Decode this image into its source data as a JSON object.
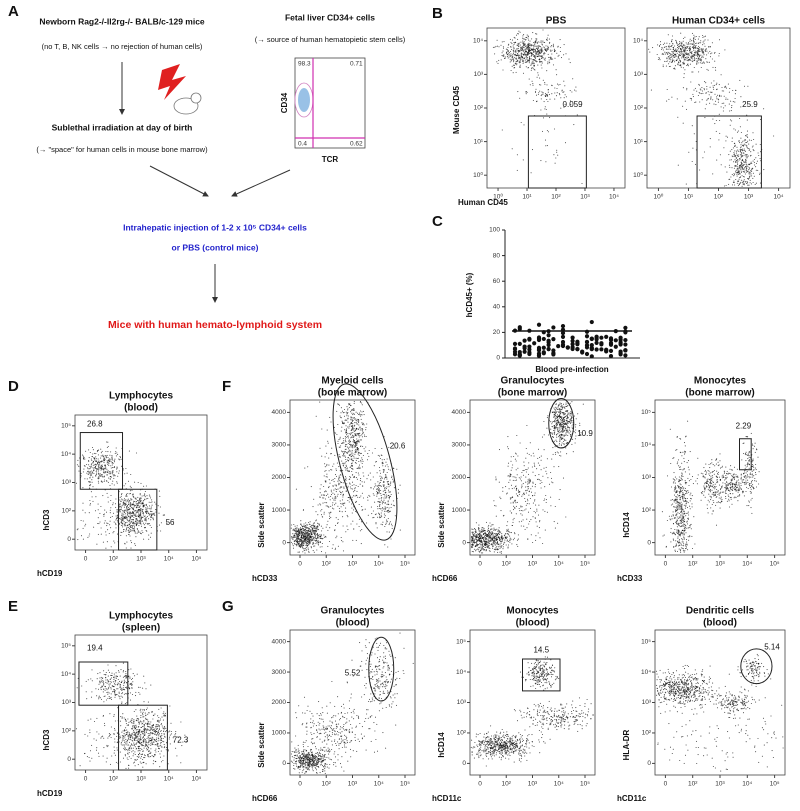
{
  "panel_a": {
    "label": "A",
    "mouse_title": "Newborn Rag2-/-Il2rg-/- BALB/c-129 mice",
    "mouse_note": "(no T, B, NK cells → no rejection of human cells)",
    "irradiation_title": "Sublethal irradiation at day of birth",
    "irradiation_note": "(→ \"space\" for human cells in mouse bone marrow)",
    "cells_title": "Fetal liver CD34+ cells",
    "cells_note": "(→ source of human hematopietic stem cells)",
    "facs": {
      "y_label": "CD34",
      "x_label": "TCR",
      "quadrants": [
        98.3,
        0.71,
        0.4,
        0.62
      ]
    },
    "injection": "Intrahepatic injection of 1-2 x 10⁵ CD34+ cells",
    "control": "or PBS (control mice)",
    "result": "Mice with human hemato-lymphoid system"
  },
  "panel_c": {
    "label": "C",
    "y_label": "hCD45+ (%)",
    "x_label": "Blood pre-infection",
    "ylim": [
      0,
      100
    ],
    "yticks": [
      0,
      20,
      40,
      60,
      80,
      100
    ]
  },
  "flow_panels": [
    {
      "label": "B",
      "y_label": "Mouse CD45",
      "x_label": "Human CD45",
      "plots": [
        {
          "title": [
            "PBS"
          ],
          "gate": 0.059,
          "xticks": [
            "10⁰",
            "10¹",
            "10²",
            "10³",
            "10⁴"
          ],
          "yticks": [
            "10⁰",
            "10¹",
            "10²",
            "10³",
            "10⁴"
          ]
        },
        {
          "title": [
            "Human CD34+ cells"
          ],
          "gate": 25.9,
          "xticks": [
            "10⁰",
            "10¹",
            "10²",
            "10³",
            "10⁴"
          ],
          "yticks": [
            "10⁰",
            "10¹",
            "10²",
            "10³",
            "10⁴"
          ]
        }
      ]
    },
    {
      "label": "D",
      "plots": [
        {
          "title": [
            "Lymphocytes",
            "(blood)"
          ],
          "x_label": "hCD19",
          "y_label": "hCD3",
          "gates": [
            26.8,
            56
          ],
          "xticks": [
            "0",
            "10²",
            "10³",
            "10⁴",
            "10⁵"
          ],
          "yticks": [
            "0",
            "10²",
            "10³",
            "10⁴",
            "10⁵"
          ]
        }
      ]
    },
    {
      "label": "E",
      "plots": [
        {
          "title": [
            "Lymphocytes",
            "(spleen)"
          ],
          "x_label": "hCD19",
          "y_label": "hCD3",
          "gates": [
            19.4,
            72.3
          ],
          "xticks": [
            "0",
            "10²",
            "10³",
            "10⁴",
            "10⁵"
          ],
          "yticks": [
            "0",
            "10²",
            "10³",
            "10⁴",
            "10⁵"
          ]
        }
      ]
    },
    {
      "label": "F",
      "plots": [
        {
          "title": [
            "Myeloid cells",
            "(bone marrow)"
          ],
          "x_label": "hCD33",
          "y_label": "Side scatter",
          "gate": 20.6,
          "xticks": [
            "0",
            "10²",
            "10³",
            "10⁴",
            "10⁵"
          ],
          "yticks": [
            "0",
            "1000",
            "2000",
            "3000",
            "4000"
          ]
        },
        {
          "title": [
            "Granulocytes",
            "(bone marrow)"
          ],
          "x_label": "hCD66",
          "y_label": "Side scatter",
          "gate": 10.9,
          "xticks": [
            "0",
            "10²",
            "10³",
            "10⁴",
            "10⁵"
          ],
          "yticks": [
            "0",
            "1000",
            "2000",
            "3000",
            "4000"
          ]
        },
        {
          "title": [
            "Monocytes",
            "(bone marrow)"
          ],
          "x_label": "hCD33",
          "y_label": "hCD14",
          "gate": 2.29,
          "xticks": [
            "0",
            "10²",
            "10³",
            "10⁴",
            "10⁵"
          ],
          "yticks": [
            "0",
            "10²",
            "10³",
            "10⁴",
            "10⁵"
          ]
        }
      ]
    },
    {
      "label": "G",
      "plots": [
        {
          "title": [
            "Granulocytes",
            "(blood)"
          ],
          "x_label": "hCD66",
          "y_label": "Side scatter",
          "gate": 5.52,
          "xticks": [
            "0",
            "10²",
            "10³",
            "10⁴",
            "10⁵"
          ],
          "yticks": [
            "0",
            "1000",
            "2000",
            "3000",
            "4000"
          ]
        },
        {
          "title": [
            "Monocytes",
            "(blood)"
          ],
          "x_label": "hCD11c",
          "y_label": "hCD14",
          "gate": 14.5,
          "xticks": [
            "0",
            "10²",
            "10³",
            "10⁴",
            "10⁵"
          ],
          "yticks": [
            "0",
            "10²",
            "10³",
            "10⁴",
            "10⁵"
          ]
        },
        {
          "title": [
            "Dendritic cells",
            "(blood)"
          ],
          "x_label": "hCD11c",
          "y_label": "HLA-DR",
          "gate": 5.14,
          "xticks": [
            "0",
            "10²",
            "10³",
            "10⁴",
            "10⁵"
          ],
          "yticks": [
            "0",
            "10²",
            "10³",
            "10⁴",
            "10⁵"
          ]
        }
      ]
    }
  ]
}
